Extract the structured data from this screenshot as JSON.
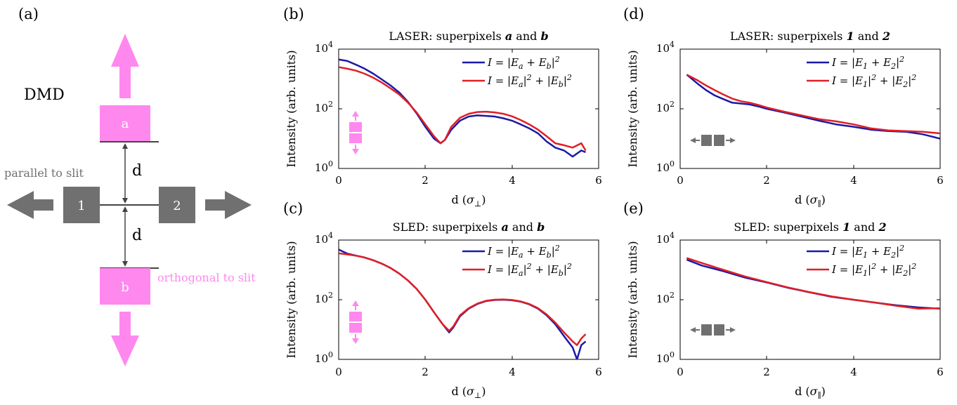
{
  "colors": {
    "blue": "#1a1aa6",
    "red": "#e01f26",
    "pink": "#ff88ee",
    "gray": "#707070"
  },
  "diagram": {
    "panel_label": "(a)",
    "dmd_label": "DMD",
    "pixel_a": "a",
    "pixel_b": "b",
    "pixel_1": "1",
    "pixel_2": "2",
    "d_top": "d",
    "d_bottom": "d",
    "parallel_label": "parallel to slit",
    "orthogonal_label": "orthogonal to slit"
  },
  "chart_data": [
    {
      "panel": "(b)",
      "type": "line",
      "title": "LASER: superpixels a and b",
      "xlabel": "d (σ⊥)",
      "ylabel": "Intensity (arb. units)",
      "xlim": [
        0,
        6
      ],
      "ylim": [
        1,
        10000
      ],
      "yscale": "log",
      "xticks": [
        "0",
        "2",
        "4",
        "6"
      ],
      "yticks": [
        "10^0",
        "10^2",
        "10^4"
      ],
      "legend_position": "top-right",
      "inset_icon": "vertical-pair",
      "series": [
        {
          "name": "I = |Ea + Eb|²",
          "color": "blue",
          "x": [
            0,
            0.2,
            0.4,
            0.6,
            0.8,
            1.0,
            1.2,
            1.4,
            1.6,
            1.8,
            2.0,
            2.2,
            2.35,
            2.45,
            2.6,
            2.8,
            3.0,
            3.2,
            3.4,
            3.6,
            3.8,
            4.0,
            4.2,
            4.4,
            4.6,
            4.8,
            5.0,
            5.2,
            5.4,
            5.6,
            5.7
          ],
          "y": [
            4500,
            4000,
            3000,
            2200,
            1500,
            950,
            600,
            350,
            170,
            70,
            25,
            10,
            7,
            9,
            20,
            40,
            55,
            60,
            58,
            55,
            48,
            40,
            30,
            22,
            15,
            8,
            5,
            4,
            2.5,
            4,
            3.5
          ]
        },
        {
          "name": "I = |Ea|² + |Eb|²",
          "color": "red",
          "x": [
            0,
            0.2,
            0.4,
            0.6,
            0.8,
            1.0,
            1.2,
            1.4,
            1.6,
            1.8,
            2.0,
            2.2,
            2.35,
            2.45,
            2.6,
            2.8,
            3.0,
            3.2,
            3.4,
            3.6,
            3.8,
            4.0,
            4.2,
            4.4,
            4.6,
            4.8,
            5.0,
            5.2,
            5.4,
            5.6,
            5.7
          ],
          "y": [
            2500,
            2200,
            1900,
            1500,
            1100,
            750,
            480,
            300,
            160,
            75,
            30,
            12,
            7,
            9,
            25,
            50,
            68,
            78,
            80,
            76,
            68,
            56,
            42,
            30,
            20,
            12,
            7,
            6,
            5,
            7,
            4
          ]
        }
      ]
    },
    {
      "panel": "(c)",
      "type": "line",
      "title": "SLED: superpixels a and b",
      "xlabel": "d (σ⊥)",
      "ylabel": "Intensity (arb. units)",
      "xlim": [
        0,
        6
      ],
      "ylim": [
        1,
        10000
      ],
      "yscale": "log",
      "xticks": [
        "0",
        "2",
        "4",
        "6"
      ],
      "yticks": [
        "10^0",
        "10^2",
        "10^4"
      ],
      "legend_position": "top-right",
      "inset_icon": "vertical-pair",
      "series": [
        {
          "name": "I = |Ea + Eb|²",
          "color": "blue",
          "x": [
            0,
            0.2,
            0.4,
            0.6,
            0.8,
            1.0,
            1.2,
            1.4,
            1.6,
            1.8,
            2.0,
            2.2,
            2.4,
            2.55,
            2.65,
            2.8,
            3.0,
            3.2,
            3.4,
            3.6,
            3.8,
            4.0,
            4.2,
            4.4,
            4.6,
            4.8,
            5.0,
            5.2,
            5.4,
            5.5,
            5.6,
            5.7
          ],
          "y": [
            4800,
            3500,
            3000,
            2600,
            2100,
            1600,
            1150,
            750,
            440,
            230,
            100,
            38,
            15,
            8,
            12,
            28,
            50,
            72,
            90,
            98,
            100,
            96,
            86,
            70,
            50,
            30,
            15,
            6,
            2.5,
            1,
            3,
            4
          ]
        },
        {
          "name": "I = |Ea|² + |Eb|²",
          "color": "red",
          "x": [
            0,
            0.2,
            0.4,
            0.6,
            0.8,
            1.0,
            1.2,
            1.4,
            1.6,
            1.8,
            2.0,
            2.2,
            2.4,
            2.55,
            2.65,
            2.8,
            3.0,
            3.2,
            3.4,
            3.6,
            3.8,
            4.0,
            4.2,
            4.4,
            4.6,
            4.8,
            5.0,
            5.2,
            5.4,
            5.5,
            5.6,
            5.7
          ],
          "y": [
            3600,
            3300,
            3000,
            2600,
            2100,
            1600,
            1150,
            750,
            440,
            230,
            100,
            38,
            15,
            9,
            13,
            30,
            52,
            74,
            92,
            100,
            102,
            98,
            88,
            72,
            52,
            32,
            17,
            8,
            4,
            3,
            5,
            7
          ]
        }
      ]
    },
    {
      "panel": "(d)",
      "type": "line",
      "title": "LASER: superpixels 1 and 2",
      "xlabel": "d (σ∥)",
      "ylabel": "Intensity (arb. units)",
      "xlim": [
        0,
        6
      ],
      "ylim": [
        1,
        10000
      ],
      "yscale": "log",
      "xticks": [
        "0",
        "2",
        "4",
        "6"
      ],
      "yticks": [
        "10^0",
        "10^2",
        "10^4"
      ],
      "legend_position": "top-right",
      "inset_icon": "horizontal-pair",
      "series": [
        {
          "name": "I = |E1 + E2|²",
          "color": "blue",
          "x": [
            0.15,
            0.4,
            0.6,
            0.8,
            1.0,
            1.2,
            1.4,
            1.6,
            1.8,
            2.0,
            2.4,
            2.8,
            3.2,
            3.6,
            4.0,
            4.4,
            4.8,
            5.2,
            5.6,
            6.0
          ],
          "y": [
            1400,
            700,
            420,
            280,
            210,
            160,
            150,
            140,
            120,
            100,
            75,
            55,
            40,
            30,
            25,
            20,
            18,
            17,
            14,
            10
          ]
        },
        {
          "name": "I = |E1|² + |E2|²",
          "color": "red",
          "x": [
            0.15,
            0.4,
            0.6,
            0.8,
            1.0,
            1.2,
            1.4,
            1.6,
            1.8,
            2.0,
            2.4,
            2.8,
            3.2,
            3.6,
            4.0,
            4.4,
            4.8,
            5.2,
            5.6,
            6.0
          ],
          "y": [
            1400,
            900,
            600,
            420,
            300,
            220,
            180,
            160,
            135,
            110,
            80,
            60,
            45,
            38,
            30,
            22,
            19,
            18,
            17,
            15
          ]
        }
      ]
    },
    {
      "panel": "(e)",
      "type": "line",
      "title": "SLED: superpixels 1 and 2",
      "xlabel": "d (σ∥)",
      "ylabel": "Intensity (arb. units)",
      "xlim": [
        0,
        6
      ],
      "ylim": [
        1,
        10000
      ],
      "yscale": "log",
      "xticks": [
        "0",
        "2",
        "4",
        "6"
      ],
      "yticks": [
        "10^0",
        "10^2",
        "10^4"
      ],
      "legend_position": "top-right",
      "inset_icon": "horizontal-pair",
      "series": [
        {
          "name": "I = |E1 + E2|²",
          "color": "blue",
          "x": [
            0.15,
            0.5,
            1.0,
            1.5,
            2.0,
            2.5,
            3.0,
            3.5,
            4.0,
            4.5,
            5.0,
            5.5,
            6.0
          ],
          "y": [
            2200,
            1400,
            900,
            550,
            380,
            250,
            175,
            125,
            100,
            80,
            65,
            55,
            50
          ]
        },
        {
          "name": "I = |E1|² + |E2|²",
          "color": "red",
          "x": [
            0.15,
            0.5,
            1.0,
            1.5,
            2.0,
            2.5,
            3.0,
            3.5,
            4.0,
            4.5,
            5.0,
            5.5,
            6.0
          ],
          "y": [
            2500,
            1700,
            1000,
            600,
            390,
            255,
            178,
            128,
            100,
            80,
            62,
            50,
            52
          ]
        }
      ]
    }
  ]
}
